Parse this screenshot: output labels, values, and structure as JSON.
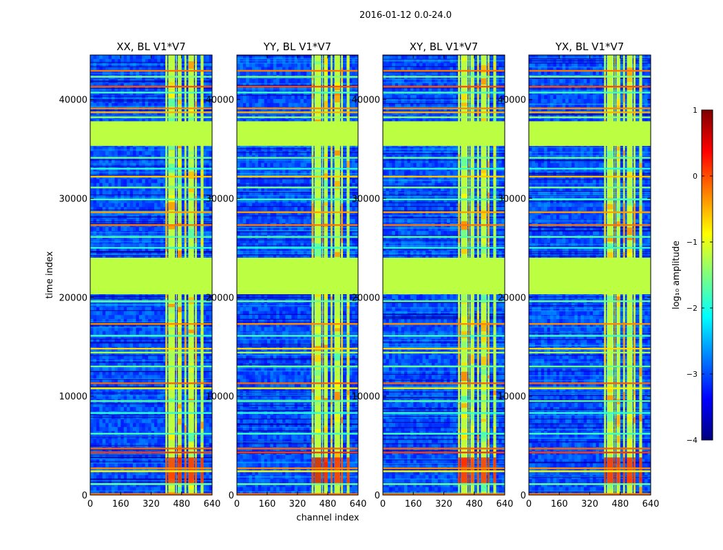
{
  "suptitle": "2016-01-12 0.0-24.0",
  "chart_data": {
    "type": "heatmap",
    "xlabel": "channel index",
    "ylabel": "time index",
    "x_range": [
      0,
      640
    ],
    "y_range": [
      0,
      44500
    ],
    "x_ticks": [
      0,
      160,
      320,
      480,
      640
    ],
    "y_ticks": [
      0,
      10000,
      20000,
      30000,
      40000
    ],
    "colorbar": {
      "label": "log₁₀ amplitude",
      "range": [
        -4,
        1
      ],
      "ticks": [
        1,
        0,
        -1,
        -2,
        -3,
        -4
      ],
      "colormap": "jet",
      "stops": [
        "#00007f",
        "#0000ff",
        "#007fff",
        "#00ffff",
        "#7fff7f",
        "#ffff00",
        "#ff7f00",
        "#ff0000",
        "#7f0000"
      ]
    },
    "panels": [
      {
        "title": "XX, BL V1*V7",
        "polarization": "XX"
      },
      {
        "title": "YY, BL V1*V7",
        "polarization": "YY"
      },
      {
        "title": "XY, BL V1*V7",
        "polarization": "XY"
      },
      {
        "title": "YX, BL V1*V7",
        "polarization": "YX"
      }
    ],
    "flagged_time_bands": [
      [
        35300,
        37800
      ],
      [
        20300,
        24000
      ]
    ],
    "flagged_value": -1.2,
    "rfi_channel_bands": [
      [
        395,
        405
      ],
      [
        410,
        445
      ],
      [
        450,
        455
      ],
      [
        460,
        480
      ],
      [
        495,
        505
      ],
      [
        515,
        545
      ],
      [
        550,
        560
      ],
      [
        580,
        595
      ]
    ],
    "horizontal_lines": [
      {
        "t": 42900,
        "v": -0.2
      },
      {
        "t": 42300,
        "v": -1.5
      },
      {
        "t": 41300,
        "v": 0.0
      },
      {
        "t": 40700,
        "v": -1.8
      },
      {
        "t": 39100,
        "v": -0.3
      },
      {
        "t": 38700,
        "v": -0.5
      },
      {
        "t": 38200,
        "v": -1.4
      },
      {
        "t": 34100,
        "v": -1.6
      },
      {
        "t": 33000,
        "v": -1.9
      },
      {
        "t": 32200,
        "v": -0.6
      },
      {
        "t": 31100,
        "v": -1.5
      },
      {
        "t": 29900,
        "v": -1.8
      },
      {
        "t": 28600,
        "v": -0.4
      },
      {
        "t": 27300,
        "v": -0.2
      },
      {
        "t": 26100,
        "v": -1.7
      },
      {
        "t": 25000,
        "v": -1.9
      },
      {
        "t": 19600,
        "v": -1.6
      },
      {
        "t": 17300,
        "v": -0.3
      },
      {
        "t": 16100,
        "v": -1.8
      },
      {
        "t": 14800,
        "v": -0.7
      },
      {
        "t": 14400,
        "v": -1.3
      },
      {
        "t": 13000,
        "v": -1.6
      },
      {
        "t": 11300,
        "v": -0.1
      },
      {
        "t": 10800,
        "v": -0.8
      },
      {
        "t": 9500,
        "v": -1.7
      },
      {
        "t": 8300,
        "v": -1.9
      },
      {
        "t": 6200,
        "v": -1.8
      },
      {
        "t": 4700,
        "v": -0.1
      },
      {
        "t": 4300,
        "v": 0.1
      },
      {
        "t": 2700,
        "v": -0.3
      },
      {
        "t": 2400,
        "v": -0.9
      },
      {
        "t": 1100,
        "v": -1.6
      },
      {
        "t": 100,
        "v": -0.2
      }
    ]
  }
}
